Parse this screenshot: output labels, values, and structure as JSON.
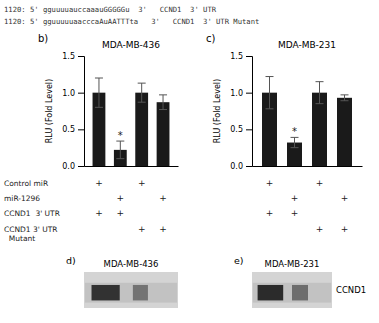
{
  "chart_data": [
    {
      "type": "bar",
      "title": "MDA-MB-436",
      "panel_label": "b)",
      "categories": [
        null,
        null,
        null,
        null
      ],
      "values": [
        1.0,
        0.22,
        1.0,
        0.87
      ],
      "errors": [
        0.2,
        0.12,
        0.13,
        0.1
      ],
      "color": "#1a1a1a",
      "ylabel": "RLU (Fold Level)",
      "ylim": [
        0,
        1.5
      ],
      "yticks": [
        {
          "value": 0,
          "label": "0.0"
        },
        0.5,
        {
          "value": 1,
          "label": "1.0"
        },
        1.5
      ],
      "annotation": {
        "text": "*",
        "index": 1
      }
    },
    {
      "type": "bar",
      "title": "MDA-MB-231",
      "panel_label": "c)",
      "categories": [
        null,
        null,
        null,
        null
      ],
      "values": [
        1.0,
        0.32,
        1.0,
        0.93
      ],
      "errors": [
        0.22,
        0.07,
        0.15,
        0.04
      ],
      "color": "#1a1a1a",
      "ylabel": "RLU (Fold Level)",
      "ylim": [
        0,
        1.5
      ],
      "yticks": [
        {
          "value": 0,
          "label": "0.0"
        },
        0.5,
        {
          "value": 1,
          "label": "1.0"
        },
        1.5
      ],
      "annotation": {
        "text": "*",
        "index": 1
      }
    }
  ],
  "header": [
    "1120: 5' gguuuuauccaaauGGGGGu  3'   CCND1  3' UTR",
    "1120: 5' gguuuuuaacccaAuAATTTta   3'   CCND1  3' UTR Mutant"
  ],
  "table": {
    "row_labels": [
      "Control miR",
      "miR-1296",
      "CCND1  3' UTR",
      "CCND1 3' UTR\n  Mutant"
    ],
    "plus_b": [
      [
        "+",
        null,
        "+",
        null
      ],
      [
        null,
        "+",
        null,
        "+"
      ],
      [
        "+",
        "+",
        null,
        null
      ],
      [
        null,
        null,
        "+",
        "+"
      ]
    ],
    "plus_c": [
      [
        "+",
        null,
        "+",
        null
      ],
      [
        null,
        "+",
        null,
        "+"
      ],
      [
        "+",
        "+",
        null,
        null
      ],
      [
        null,
        null,
        "+",
        "+"
      ]
    ]
  },
  "blots": [
    {
      "panel_label": "d)",
      "title": "MDA-MB-436"
    },
    {
      "panel_label": "e)",
      "title": "MDA-MB-231",
      "band_label": "CCND1"
    }
  ]
}
